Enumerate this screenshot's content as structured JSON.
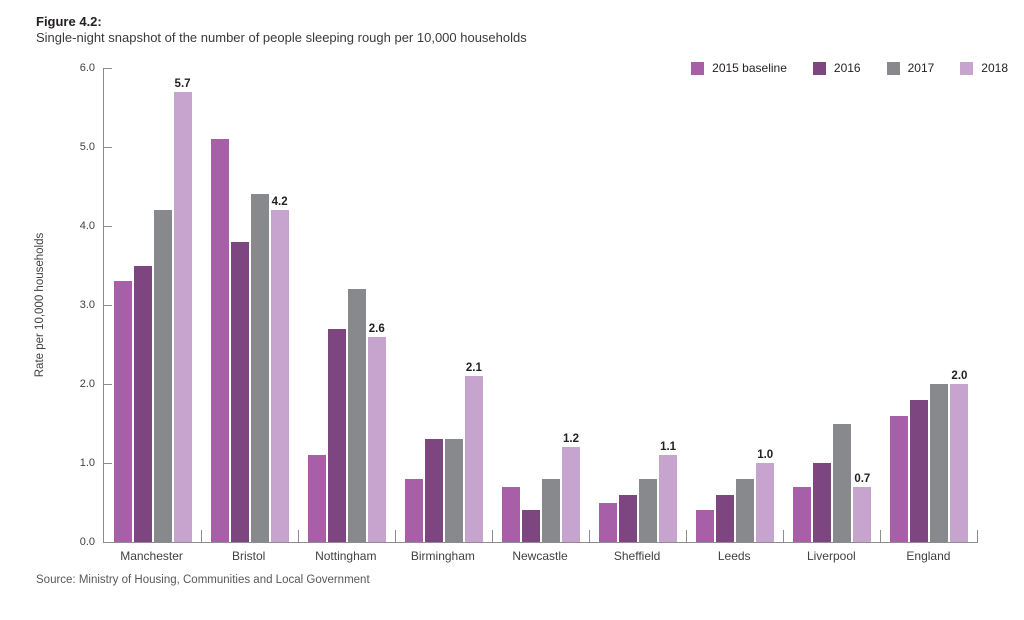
{
  "figure": {
    "title": "Figure 4.2:",
    "subtitle": "Single-night snapshot of the number of people sleeping rough per 10,000 households",
    "source": "Source: Ministry of Housing, Communities and Local Government"
  },
  "chart_data": {
    "type": "bar",
    "title": "Single-night snapshot of the number of people sleeping rough per 10,000 households",
    "ylabel": "Rate per 10,000 households",
    "xlabel": "",
    "ylim": [
      0,
      6
    ],
    "ytick_labels": [
      "0.0",
      "1.0",
      "2.0",
      "3.0",
      "4.0",
      "5.0",
      "6.0"
    ],
    "ytick_values": [
      0,
      1,
      2,
      3,
      4,
      5,
      6
    ],
    "grid": false,
    "legend_position": "top-right",
    "categories": [
      "Manchester",
      "Bristol",
      "Nottingham",
      "Birmingham",
      "Newcastle",
      "Sheffield",
      "Leeds",
      "Liverpool",
      "England"
    ],
    "series": [
      {
        "name": "2015 baseline",
        "color": "#a75fa8",
        "values": [
          3.3,
          5.1,
          1.1,
          0.8,
          0.7,
          0.5,
          0.4,
          0.7,
          1.6
        ]
      },
      {
        "name": "2016",
        "color": "#7d4680",
        "values": [
          3.5,
          3.8,
          2.7,
          1.3,
          0.4,
          0.6,
          0.6,
          1.0,
          1.8
        ]
      },
      {
        "name": "2017",
        "color": "#87898c",
        "values": [
          4.2,
          4.4,
          3.2,
          1.3,
          0.8,
          0.8,
          0.8,
          1.5,
          2.0
        ]
      },
      {
        "name": "2018",
        "color": "#c7a4cd",
        "values": [
          5.7,
          4.2,
          2.6,
          2.1,
          1.2,
          1.1,
          1.0,
          0.7,
          2.0
        ],
        "labeled": true,
        "labels": [
          "5.7",
          "4.2",
          "2.6",
          "2.1",
          "1.2",
          "1.1",
          "1.0",
          "0.7",
          "2.0"
        ]
      }
    ]
  }
}
